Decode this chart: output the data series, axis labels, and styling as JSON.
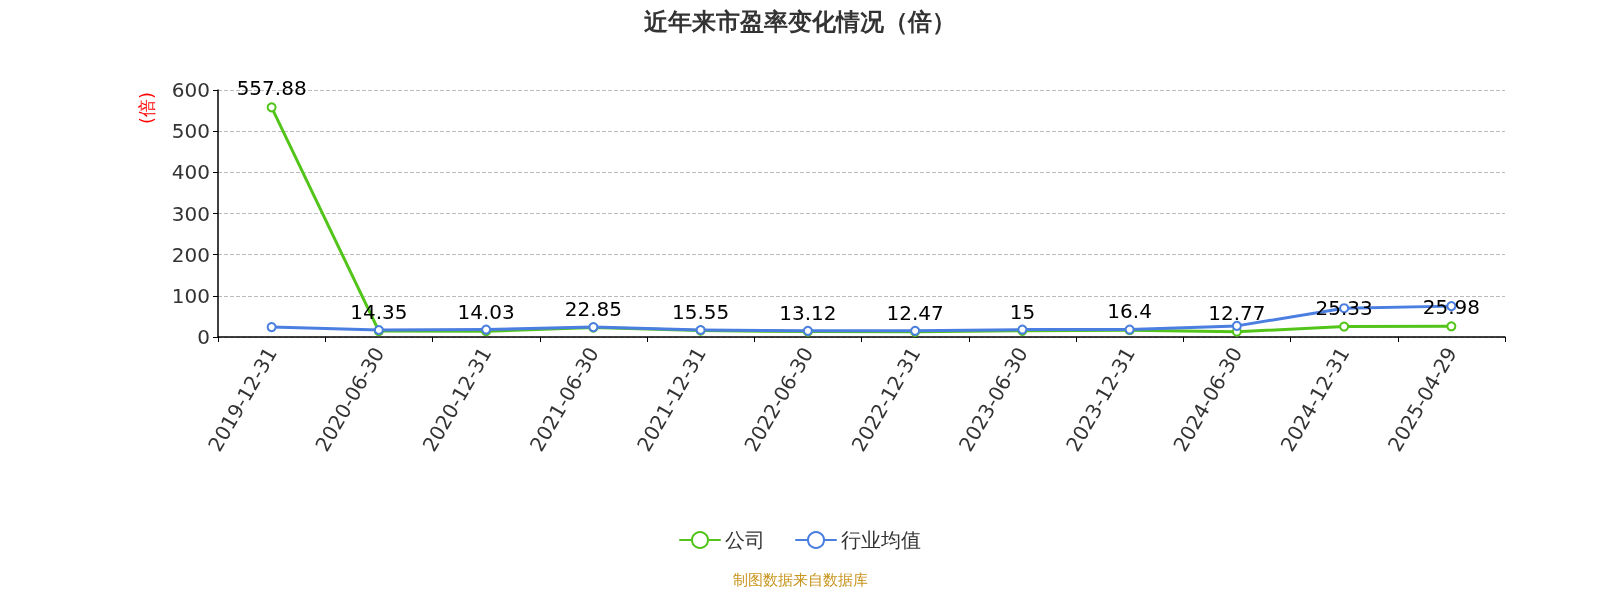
{
  "chart_data": {
    "type": "line",
    "title": "近年来市盈率变化情况（倍）",
    "ylabel": "(倍)",
    "categories": [
      "2019-12-31",
      "2020-06-30",
      "2020-12-31",
      "2021-06-30",
      "2021-12-31",
      "2022-06-30",
      "2022-12-31",
      "2023-06-30",
      "2023-12-31",
      "2024-06-30",
      "2024-12-31",
      "2025-04-29"
    ],
    "series": [
      {
        "name": "公司",
        "color": "#52c41a",
        "values": [
          557.88,
          14.35,
          14.03,
          22.85,
          15.55,
          13.12,
          12.47,
          15,
          16.4,
          12.77,
          25.33,
          25.98
        ],
        "value_labels": [
          "557.88",
          "14.35",
          "14.03",
          "22.85",
          "15.55",
          "13.12",
          "12.47",
          "15",
          "16.4",
          "12.77",
          "25.33",
          "25.98"
        ]
      },
      {
        "name": "行业均值",
        "color": "#4a7ee0",
        "values": [
          24,
          17,
          18,
          24,
          17,
          15,
          15,
          18,
          18,
          27,
          70,
          75
        ]
      }
    ],
    "ylim": [
      0,
      600
    ],
    "yticks": [
      0,
      100,
      200,
      300,
      400,
      500,
      600
    ],
    "grid": "y",
    "legend": "bottom",
    "marker": "circle",
    "line_style": "solid",
    "annotations": [
      "制图数据来自数据库"
    ]
  }
}
